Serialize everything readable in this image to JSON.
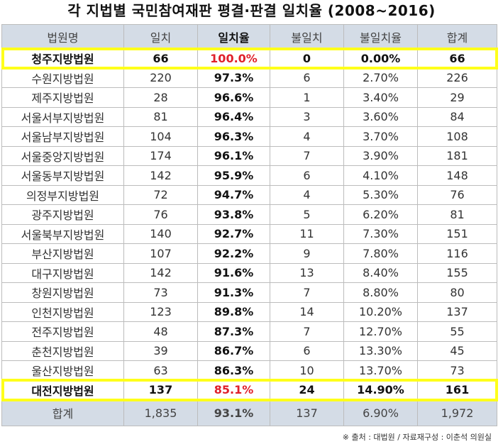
{
  "title": "각 지법별 국민참여재판 평결·판결 일치율 (2008~2016)",
  "columns": [
    "법원명",
    "일치",
    "일치율",
    "불일치",
    "불일치율",
    "합계"
  ],
  "rows": [
    {
      "court": "청주지방법원",
      "match": "66",
      "rate": "100.0%",
      "mismatch": "0",
      "mismatch_rate": "0.00%",
      "total": "66",
      "highlight": true
    },
    {
      "court": "수원지방법원",
      "match": "220",
      "rate": "97.3%",
      "mismatch": "6",
      "mismatch_rate": "2.70%",
      "total": "226",
      "highlight": false
    },
    {
      "court": "제주지방법원",
      "match": "28",
      "rate": "96.6%",
      "mismatch": "1",
      "mismatch_rate": "3.40%",
      "total": "29",
      "highlight": false
    },
    {
      "court": "서울서부지방법원",
      "match": "81",
      "rate": "96.4%",
      "mismatch": "3",
      "mismatch_rate": "3.60%",
      "total": "84",
      "highlight": false
    },
    {
      "court": "서울남부지방법원",
      "match": "104",
      "rate": "96.3%",
      "mismatch": "4",
      "mismatch_rate": "3.70%",
      "total": "108",
      "highlight": false
    },
    {
      "court": "서울중앙지방법원",
      "match": "174",
      "rate": "96.1%",
      "mismatch": "7",
      "mismatch_rate": "3.90%",
      "total": "181",
      "highlight": false
    },
    {
      "court": "서울동부지방법원",
      "match": "142",
      "rate": "95.9%",
      "mismatch": "6",
      "mismatch_rate": "4.10%",
      "total": "148",
      "highlight": false
    },
    {
      "court": "의정부지방법원",
      "match": "72",
      "rate": "94.7%",
      "mismatch": "4",
      "mismatch_rate": "5.30%",
      "total": "76",
      "highlight": false
    },
    {
      "court": "광주지방법원",
      "match": "76",
      "rate": "93.8%",
      "mismatch": "5",
      "mismatch_rate": "6.20%",
      "total": "81",
      "highlight": false
    },
    {
      "court": "서울북부지방법원",
      "match": "140",
      "rate": "92.7%",
      "mismatch": "11",
      "mismatch_rate": "7.30%",
      "total": "151",
      "highlight": false
    },
    {
      "court": "부산지방법원",
      "match": "107",
      "rate": "92.2%",
      "mismatch": "9",
      "mismatch_rate": "7.80%",
      "total": "116",
      "highlight": false
    },
    {
      "court": "대구지방법원",
      "match": "142",
      "rate": "91.6%",
      "mismatch": "13",
      "mismatch_rate": "8.40%",
      "total": "155",
      "highlight": false
    },
    {
      "court": "창원지방법원",
      "match": "73",
      "rate": "91.3%",
      "mismatch": "7",
      "mismatch_rate": "8.80%",
      "total": "80",
      "highlight": false
    },
    {
      "court": "인천지방법원",
      "match": "123",
      "rate": "89.8%",
      "mismatch": "14",
      "mismatch_rate": "10.20%",
      "total": "137",
      "highlight": false
    },
    {
      "court": "전주지방법원",
      "match": "48",
      "rate": "87.3%",
      "mismatch": "7",
      "mismatch_rate": "12.70%",
      "total": "55",
      "highlight": false
    },
    {
      "court": "춘천지방법원",
      "match": "39",
      "rate": "86.7%",
      "mismatch": "6",
      "mismatch_rate": "13.30%",
      "total": "45",
      "highlight": false
    },
    {
      "court": "울산지방법원",
      "match": "63",
      "rate": "86.3%",
      "mismatch": "10",
      "mismatch_rate": "13.70%",
      "total": "73",
      "highlight": false
    },
    {
      "court": "대전지방법원",
      "match": "137",
      "rate": "85.1%",
      "mismatch": "24",
      "mismatch_rate": "14.90%",
      "total": "161",
      "highlight": true
    }
  ],
  "totals": {
    "court": "합계",
    "match": "1,835",
    "rate": "93.1%",
    "mismatch": "137",
    "mismatch_rate": "6.90%",
    "total": "1,972"
  },
  "note": "※ 출처 : 대법원  /  자료재구성 : 이춘석 의원실",
  "colors": {
    "header_bg": "#d4dce6",
    "highlight_border": "#ffff1a",
    "highlight_rate": "#e0202a"
  }
}
